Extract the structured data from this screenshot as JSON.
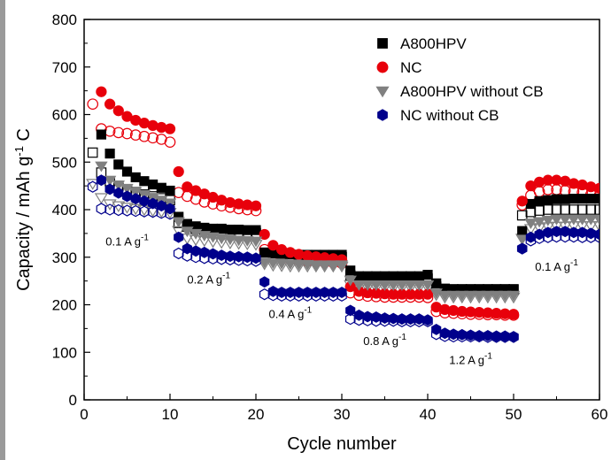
{
  "chart_data": {
    "type": "scatter",
    "xlabel": "Cycle number",
    "ylabel": "Capacity / mAh g",
    "ylabel_sup": "-1",
    "ylabel_tail": " C",
    "xlim": [
      0,
      60
    ],
    "ylim": [
      0,
      800
    ],
    "xticks": [
      0,
      10,
      20,
      30,
      40,
      50,
      60
    ],
    "yticks": [
      0,
      100,
      200,
      300,
      400,
      500,
      600,
      700,
      800
    ],
    "legend_position": "top-right",
    "annotations": [
      {
        "text": "0.1 A g",
        "sup": "-1",
        "x": 2.5,
        "y": 325
      },
      {
        "text": "0.2 A g",
        "sup": "-1",
        "x": 12,
        "y": 245
      },
      {
        "text": "0.4 A g",
        "sup": "-1",
        "x": 21.5,
        "y": 172
      },
      {
        "text": "0.8 A g",
        "sup": "-1",
        "x": 32.5,
        "y": 115
      },
      {
        "text": "1.2 A g",
        "sup": "-1",
        "x": 42.5,
        "y": 75
      },
      {
        "text": "0.1 A g",
        "sup": "-1",
        "x": 52.5,
        "y": 272
      }
    ],
    "series": [
      {
        "name": "A800HPV",
        "color": "#000000",
        "marker": "square",
        "x": [
          2,
          3,
          4,
          5,
          6,
          7,
          8,
          9,
          10,
          11,
          12,
          13,
          14,
          15,
          16,
          17,
          18,
          19,
          20,
          21,
          22,
          23,
          24,
          25,
          26,
          27,
          28,
          29,
          30,
          31,
          32,
          33,
          34,
          35,
          36,
          37,
          38,
          39,
          40,
          41,
          42,
          43,
          44,
          45,
          46,
          47,
          48,
          49,
          50,
          51,
          52,
          53,
          54,
          55,
          56,
          57,
          58,
          59,
          60
        ],
        "y": [
          558,
          518,
          495,
          480,
          468,
          460,
          453,
          446,
          440,
          385,
          370,
          365,
          362,
          360,
          360,
          358,
          358,
          357,
          357,
          310,
          308,
          307,
          306,
          305,
          305,
          305,
          305,
          305,
          305,
          272,
          260,
          260,
          260,
          260,
          260,
          260,
          260,
          260,
          263,
          245,
          234,
          233,
          233,
          233,
          233,
          233,
          233,
          233,
          233,
          355,
          412,
          418,
          420,
          422,
          422,
          423,
          423,
          423,
          423
        ]
      },
      {
        "name": "NC",
        "color": "#e8000b",
        "marker": "circle",
        "x": [
          2,
          3,
          4,
          5,
          6,
          7,
          8,
          9,
          10,
          11,
          12,
          13,
          14,
          15,
          16,
          17,
          18,
          19,
          20,
          21,
          22,
          23,
          24,
          25,
          26,
          27,
          28,
          29,
          30,
          31,
          32,
          33,
          34,
          35,
          36,
          37,
          38,
          39,
          40,
          41,
          42,
          43,
          44,
          45,
          46,
          47,
          48,
          49,
          50,
          51,
          52,
          53,
          54,
          55,
          56,
          57,
          58,
          59,
          60
        ],
        "y": [
          648,
          622,
          608,
          596,
          588,
          582,
          577,
          573,
          570,
          480,
          448,
          440,
          433,
          426,
          420,
          415,
          412,
          410,
          408,
          348,
          325,
          316,
          310,
          306,
          303,
          301,
          299,
          297,
          295,
          238,
          228,
          225,
          224,
          223,
          222,
          222,
          222,
          222,
          222,
          195,
          190,
          188,
          186,
          185,
          184,
          183,
          182,
          181,
          180,
          418,
          450,
          458,
          462,
          462,
          460,
          455,
          452,
          448,
          445
        ]
      },
      {
        "name": "A800HPV without CB",
        "color": "#808080",
        "marker": "triangle-down",
        "x": [
          2,
          3,
          4,
          5,
          6,
          7,
          8,
          9,
          10,
          11,
          12,
          13,
          14,
          15,
          16,
          17,
          18,
          19,
          20,
          21,
          22,
          23,
          24,
          25,
          26,
          27,
          28,
          29,
          30,
          31,
          32,
          33,
          34,
          35,
          36,
          37,
          38,
          39,
          40,
          41,
          42,
          43,
          44,
          45,
          46,
          47,
          48,
          49,
          50,
          51,
          52,
          53,
          54,
          55,
          56,
          57,
          58,
          59,
          60
        ],
        "y": [
          492,
          462,
          452,
          445,
          438,
          432,
          426,
          420,
          414,
          375,
          355,
          350,
          346,
          343,
          340,
          338,
          336,
          335,
          334,
          290,
          288,
          287,
          286,
          285,
          285,
          284,
          284,
          284,
          284,
          252,
          242,
          242,
          242,
          242,
          242,
          242,
          242,
          242,
          242,
          225,
          220,
          220,
          220,
          220,
          220,
          220,
          220,
          220,
          220,
          338,
          372,
          375,
          378,
          380,
          380,
          380,
          380,
          380,
          380
        ]
      },
      {
        "name": "NC without CB",
        "color": "#00008b",
        "marker": "hexagon",
        "x": [
          2,
          3,
          4,
          5,
          6,
          7,
          8,
          9,
          10,
          11,
          12,
          13,
          14,
          15,
          16,
          17,
          18,
          19,
          20,
          21,
          22,
          23,
          24,
          25,
          26,
          27,
          28,
          29,
          30,
          31,
          32,
          33,
          34,
          35,
          36,
          37,
          38,
          39,
          40,
          41,
          42,
          43,
          44,
          45,
          46,
          47,
          48,
          49,
          50,
          51,
          52,
          53,
          54,
          55,
          56,
          57,
          58,
          59,
          60
        ],
        "y": [
          462,
          443,
          435,
          428,
          423,
          418,
          413,
          408,
          402,
          342,
          318,
          313,
          310,
          307,
          304,
          302,
          301,
          300,
          298,
          248,
          228,
          226,
          226,
          226,
          226,
          226,
          226,
          226,
          226,
          188,
          178,
          175,
          174,
          172,
          171,
          170,
          170,
          170,
          168,
          148,
          140,
          138,
          137,
          136,
          135,
          135,
          134,
          134,
          133,
          318,
          342,
          348,
          352,
          354,
          354,
          352,
          352,
          350,
          348
        ]
      },
      {
        "name": "",
        "color": "#000000",
        "marker": "square-open",
        "x": [
          1,
          2,
          3,
          4,
          5,
          6,
          7,
          8,
          9,
          10,
          11,
          12,
          13,
          14,
          15,
          16,
          17,
          18,
          19,
          20,
          21,
          22,
          23,
          24,
          25,
          26,
          27,
          28,
          29,
          30,
          31,
          32,
          33,
          34,
          35,
          36,
          37,
          38,
          39,
          40,
          41,
          42,
          43,
          44,
          45,
          46,
          47,
          48,
          49,
          50,
          51,
          52,
          53,
          54,
          55,
          56,
          57,
          58,
          59,
          60
        ],
        "y": [
          520,
          478,
          460,
          450,
          443,
          437,
          432,
          428,
          424,
          420,
          372,
          364,
          360,
          358,
          356,
          355,
          354,
          353,
          352,
          351,
          305,
          302,
          301,
          300,
          300,
          300,
          300,
          300,
          300,
          300,
          262,
          256,
          255,
          255,
          255,
          255,
          255,
          255,
          255,
          255,
          238,
          232,
          232,
          232,
          232,
          232,
          232,
          232,
          232,
          232,
          388,
          395,
          398,
          400,
          400,
          400,
          400,
          400,
          400,
          400
        ]
      },
      {
        "name": "",
        "color": "#e8000b",
        "marker": "circle-open",
        "x": [
          1,
          2,
          3,
          4,
          5,
          6,
          7,
          8,
          9,
          10,
          11,
          12,
          13,
          14,
          15,
          16,
          17,
          18,
          19,
          20,
          21,
          22,
          23,
          24,
          25,
          26,
          27,
          28,
          29,
          30,
          31,
          32,
          33,
          34,
          35,
          36,
          37,
          38,
          39,
          40,
          41,
          42,
          43,
          44,
          45,
          46,
          47,
          48,
          49,
          50,
          51,
          52,
          53,
          54,
          55,
          56,
          57,
          58,
          59,
          60
        ],
        "y": [
          622,
          570,
          565,
          562,
          560,
          557,
          554,
          551,
          548,
          542,
          436,
          428,
          422,
          416,
          412,
          408,
          405,
          402,
          400,
          398,
          316,
          305,
          298,
          295,
          293,
          291,
          290,
          289,
          288,
          287,
          225,
          220,
          218,
          217,
          216,
          216,
          216,
          216,
          216,
          215,
          186,
          183,
          182,
          181,
          180,
          180,
          179,
          179,
          178,
          178,
          410,
          430,
          438,
          442,
          442,
          440,
          438,
          436,
          432,
          430
        ]
      },
      {
        "name": "",
        "color": "#808080",
        "marker": "triangle-open",
        "x": [
          1,
          2,
          3,
          4,
          5,
          6,
          7,
          8,
          9,
          10,
          11,
          12,
          13,
          14,
          15,
          16,
          17,
          18,
          19,
          20,
          21,
          22,
          23,
          24,
          25,
          26,
          27,
          28,
          29,
          30,
          31,
          32,
          33,
          34,
          35,
          36,
          37,
          38,
          39,
          40,
          41,
          42,
          43,
          44,
          45,
          46,
          47,
          48,
          49,
          50,
          51,
          52,
          53,
          54,
          55,
          56,
          57,
          58,
          59,
          60
        ],
        "y": [
          455,
          425,
          412,
          408,
          405,
          402,
          400,
          398,
          396,
          394,
          356,
          340,
          337,
          335,
          333,
          331,
          330,
          329,
          328,
          327,
          286,
          283,
          282,
          281,
          281,
          281,
          281,
          281,
          281,
          281,
          242,
          236,
          236,
          236,
          236,
          236,
          236,
          236,
          236,
          236,
          221,
          216,
          216,
          216,
          216,
          216,
          216,
          216,
          216,
          216,
          340,
          360,
          362,
          364,
          365,
          365,
          366,
          366,
          366,
          366
        ]
      },
      {
        "name": "",
        "color": "#00008b",
        "marker": "hexagon-open",
        "x": [
          1,
          2,
          3,
          4,
          5,
          6,
          7,
          8,
          9,
          10,
          11,
          12,
          13,
          14,
          15,
          16,
          17,
          18,
          19,
          20,
          21,
          22,
          23,
          24,
          25,
          26,
          27,
          28,
          29,
          30,
          31,
          32,
          33,
          34,
          35,
          36,
          37,
          38,
          39,
          40,
          41,
          42,
          43,
          44,
          45,
          46,
          47,
          48,
          49,
          50,
          51,
          52,
          53,
          54,
          55,
          56,
          57,
          58,
          59,
          60
        ],
        "y": [
          448,
          402,
          400,
          399,
          398,
          397,
          396,
          395,
          393,
          391,
          308,
          303,
          300,
          298,
          297,
          296,
          295,
          294,
          293,
          292,
          222,
          220,
          219,
          219,
          219,
          219,
          219,
          219,
          219,
          219,
          170,
          168,
          167,
          166,
          166,
          166,
          165,
          165,
          165,
          165,
          138,
          134,
          133,
          133,
          133,
          133,
          132,
          132,
          132,
          132,
          318,
          335,
          340,
          342,
          343,
          343,
          343,
          342,
          342,
          342
        ]
      }
    ]
  }
}
